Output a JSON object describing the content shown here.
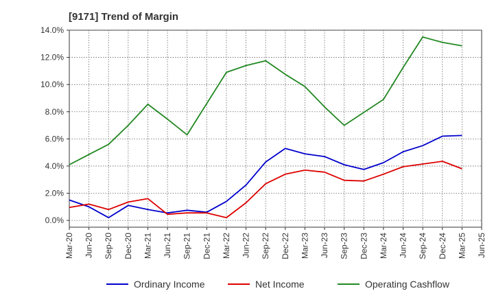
{
  "chart_data": {
    "type": "line",
    "title": "[9171]  Trend of Margin",
    "xlabel": "",
    "ylabel": "",
    "ylim": [
      -0.5,
      14.0
    ],
    "yticks": [
      "0.0%",
      "2.0%",
      "4.0%",
      "6.0%",
      "8.0%",
      "10.0%",
      "12.0%",
      "14.0%"
    ],
    "ytick_values": [
      0,
      2,
      4,
      6,
      8,
      10,
      12,
      14
    ],
    "x_tick_labels": [
      "Mar-20",
      "Jun-20",
      "Sep-20",
      "Dec-20",
      "Mar-21",
      "Jun-21",
      "Sep-21",
      "Dec-21",
      "Mar-22",
      "Jun-22",
      "Sep-22",
      "Dec-22",
      "Mar-23",
      "Jun-23",
      "Sep-23",
      "Dec-23",
      "Mar-24",
      "Jun-24",
      "Sep-24",
      "Dec-24",
      "Mar-25",
      "Jun-25"
    ],
    "x": [
      "Mar-20",
      "Jun-20",
      "Sep-20",
      "Dec-20",
      "Mar-21",
      "Jun-21",
      "Sep-21",
      "Dec-21",
      "Mar-22",
      "Jun-22",
      "Sep-22",
      "Dec-22",
      "Mar-23",
      "Jun-23",
      "Sep-23",
      "Dec-23",
      "Mar-24",
      "Jun-24",
      "Sep-24",
      "Dec-24",
      "Mar-25"
    ],
    "grid": true,
    "legend_position": "bottom",
    "series": [
      {
        "name": "Ordinary Income",
        "color": "#0000cc",
        "values": [
          1.5,
          1.0,
          0.2,
          1.1,
          0.8,
          0.55,
          0.75,
          0.6,
          1.4,
          2.6,
          4.3,
          5.3,
          4.9,
          4.7,
          4.1,
          3.75,
          4.25,
          5.05,
          5.5,
          6.2,
          6.25
        ]
      },
      {
        "name": "Net Income",
        "color": "#dd0000",
        "values": [
          0.95,
          1.2,
          0.8,
          1.35,
          1.6,
          0.45,
          0.55,
          0.55,
          0.2,
          1.3,
          2.7,
          3.4,
          3.7,
          3.55,
          2.95,
          2.9,
          3.4,
          3.95,
          4.15,
          4.35,
          3.8
        ]
      },
      {
        "name": "Operating Cashflow",
        "color": "#228822",
        "values": [
          4.1,
          4.85,
          5.6,
          7.0,
          8.55,
          7.45,
          6.3,
          8.6,
          10.9,
          11.4,
          11.75,
          10.75,
          9.85,
          8.35,
          7.0,
          7.95,
          8.9,
          11.25,
          13.5,
          13.1,
          12.85
        ]
      }
    ]
  }
}
